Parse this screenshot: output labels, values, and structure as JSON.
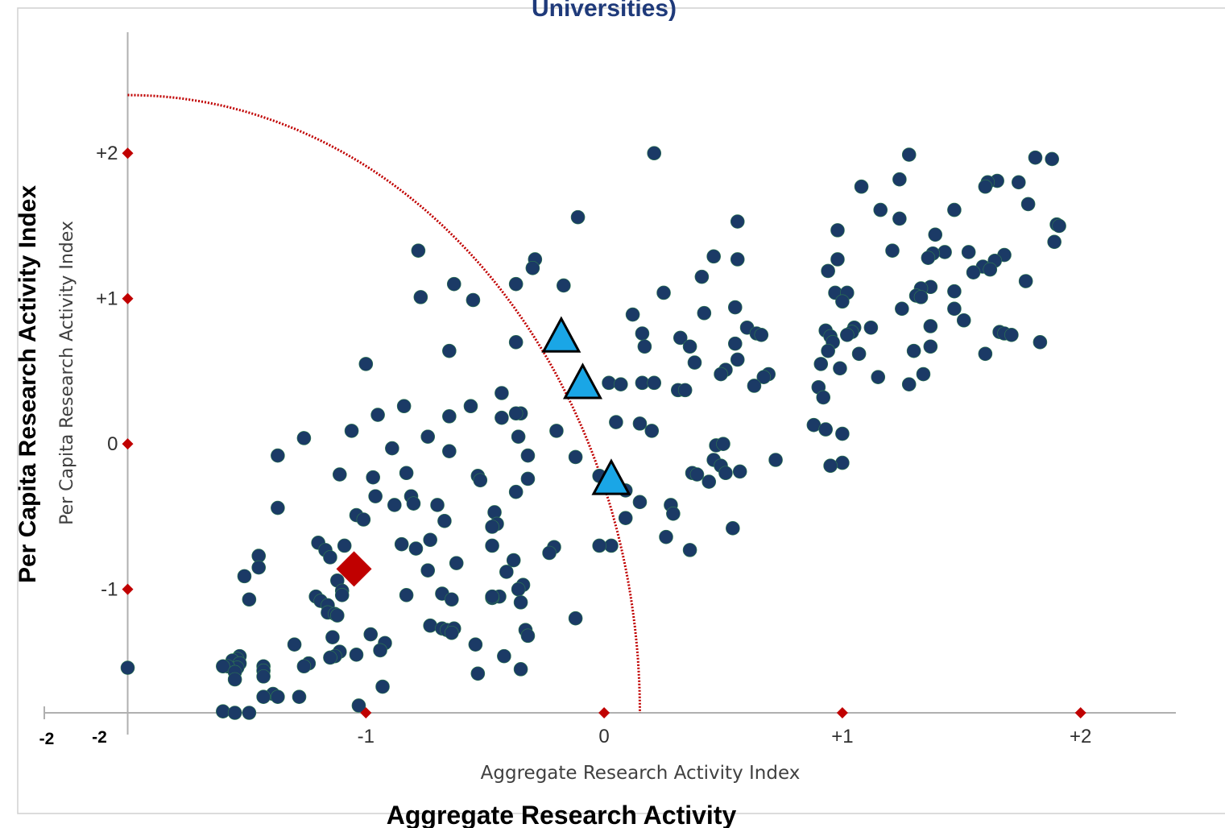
{
  "chart_data": {
    "type": "scatter",
    "title": "Universities)",
    "xlabel": "Aggregate Research Activity",
    "ylabel": "Per Capita Research Activity Index",
    "inner_xlabel": "Aggregate Research Activity Index",
    "inner_ylabel": "Per Capita Research Activity Index",
    "xlim": [
      -2.35,
      2.4
    ],
    "ylim": [
      -1.85,
      2.5
    ],
    "x_ticks": [
      {
        "value": -2,
        "label": "-2"
      },
      {
        "value": -1,
        "label": "-1"
      },
      {
        "value": 0,
        "label": "0"
      },
      {
        "value": 1,
        "label": "+1"
      },
      {
        "value": 2,
        "label": "+2"
      }
    ],
    "y_ticks": [
      {
        "value": -1,
        "label": "-1"
      },
      {
        "value": 0,
        "label": "0"
      },
      {
        "value": 1,
        "label": "+1"
      },
      {
        "value": 2,
        "label": "+2"
      }
    ],
    "outer_x_tick_label": "-2",
    "colors": {
      "points": "#1b3a66",
      "triangles": "#1aa6e6",
      "diamond": "#c00000",
      "curve": "#c00000",
      "axis": "#b0b0b0"
    },
    "curve": {
      "center_x": -2,
      "center_y": -1.85,
      "radius_x": 2.15,
      "radius_y": 4.25
    },
    "series": [
      {
        "marker": "circle",
        "points": [
          [
            0.21,
            2.0
          ],
          [
            1.28,
            1.99
          ],
          [
            1.81,
            1.97
          ],
          [
            1.88,
            1.96
          ],
          [
            1.24,
            1.82
          ],
          [
            1.65,
            1.81
          ],
          [
            1.61,
            1.8
          ],
          [
            1.74,
            1.8
          ],
          [
            1.6,
            1.77
          ],
          [
            1.08,
            1.77
          ],
          [
            1.78,
            1.65
          ],
          [
            1.16,
            1.61
          ],
          [
            1.47,
            1.61
          ],
          [
            -0.11,
            1.56
          ],
          [
            1.24,
            1.55
          ],
          [
            0.56,
            1.53
          ],
          [
            1.9,
            1.51
          ],
          [
            1.91,
            1.5
          ],
          [
            0.98,
            1.47
          ],
          [
            1.39,
            1.44
          ],
          [
            1.89,
            1.39
          ],
          [
            -0.78,
            1.33
          ],
          [
            1.21,
            1.33
          ],
          [
            1.43,
            1.32
          ],
          [
            1.38,
            1.31
          ],
          [
            1.53,
            1.32
          ],
          [
            1.68,
            1.3
          ],
          [
            0.46,
            1.29
          ],
          [
            1.36,
            1.28
          ],
          [
            0.56,
            1.27
          ],
          [
            0.98,
            1.27
          ],
          [
            -0.29,
            1.27
          ],
          [
            1.64,
            1.26
          ],
          [
            1.59,
            1.22
          ],
          [
            -0.3,
            1.21
          ],
          [
            0.94,
            1.19
          ],
          [
            1.62,
            1.2
          ],
          [
            1.55,
            1.18
          ],
          [
            0.41,
            1.15
          ],
          [
            1.77,
            1.12
          ],
          [
            -0.63,
            1.1
          ],
          [
            -0.37,
            1.1
          ],
          [
            -0.17,
            1.09
          ],
          [
            1.37,
            1.08
          ],
          [
            1.33,
            1.07
          ],
          [
            0.97,
            1.04
          ],
          [
            1.02,
            1.04
          ],
          [
            1.47,
            1.05
          ],
          [
            0.25,
            1.04
          ],
          [
            1.31,
            1.02
          ],
          [
            1.33,
            1.01
          ],
          [
            -0.77,
            1.01
          ],
          [
            -0.55,
            0.99
          ],
          [
            1.0,
            0.98
          ],
          [
            0.55,
            0.94
          ],
          [
            1.25,
            0.93
          ],
          [
            1.47,
            0.93
          ],
          [
            0.42,
            0.9
          ],
          [
            0.12,
            0.89
          ],
          [
            1.51,
            0.85
          ],
          [
            1.37,
            0.81
          ],
          [
            0.6,
            0.8
          ],
          [
            1.05,
            0.8
          ],
          [
            1.12,
            0.8
          ],
          [
            0.93,
            0.78
          ],
          [
            1.04,
            0.77
          ],
          [
            1.66,
            0.77
          ],
          [
            0.64,
            0.76
          ],
          [
            1.02,
            0.75
          ],
          [
            0.66,
            0.75
          ],
          [
            1.68,
            0.76
          ],
          [
            0.16,
            0.76
          ],
          [
            0.32,
            0.73
          ],
          [
            0.95,
            0.74
          ],
          [
            1.71,
            0.75
          ],
          [
            0.96,
            0.7
          ],
          [
            -0.37,
            0.7
          ],
          [
            0.55,
            0.69
          ],
          [
            1.83,
            0.7
          ],
          [
            0.36,
            0.67
          ],
          [
            0.17,
            0.67
          ],
          [
            1.37,
            0.67
          ],
          [
            1.3,
            0.64
          ],
          [
            -0.65,
            0.64
          ],
          [
            0.94,
            0.64
          ],
          [
            1.07,
            0.62
          ],
          [
            1.6,
            0.62
          ],
          [
            0.56,
            0.58
          ],
          [
            0.38,
            0.56
          ],
          [
            0.91,
            0.55
          ],
          [
            -1.0,
            0.55
          ],
          [
            0.51,
            0.51
          ],
          [
            0.99,
            0.52
          ],
          [
            0.49,
            0.48
          ],
          [
            0.69,
            0.48
          ],
          [
            0.67,
            0.46
          ],
          [
            1.34,
            0.48
          ],
          [
            1.15,
            0.46
          ],
          [
            0.02,
            0.42
          ],
          [
            0.07,
            0.41
          ],
          [
            0.16,
            0.42
          ],
          [
            0.21,
            0.42
          ],
          [
            1.28,
            0.41
          ],
          [
            0.63,
            0.4
          ],
          [
            0.9,
            0.39
          ],
          [
            0.31,
            0.37
          ],
          [
            0.34,
            0.37
          ],
          [
            -0.43,
            0.35
          ],
          [
            0.92,
            0.32
          ],
          [
            -0.84,
            0.26
          ],
          [
            -0.56,
            0.26
          ],
          [
            -0.35,
            0.21
          ],
          [
            -0.37,
            0.21
          ],
          [
            -0.95,
            0.2
          ],
          [
            -0.43,
            0.18
          ],
          [
            0.05,
            0.15
          ],
          [
            0.15,
            0.14
          ],
          [
            -0.2,
            0.09
          ],
          [
            -0.65,
            0.19
          ],
          [
            -1.06,
            0.09
          ],
          [
            0.88,
            0.13
          ],
          [
            0.93,
            0.1
          ],
          [
            0.2,
            0.09
          ],
          [
            -0.36,
            0.05
          ],
          [
            -0.74,
            0.05
          ],
          [
            -1.26,
            0.04
          ],
          [
            1.0,
            0.07
          ],
          [
            0.47,
            -0.01
          ],
          [
            0.5,
            0.0
          ],
          [
            -0.89,
            -0.03
          ],
          [
            -0.65,
            -0.05
          ],
          [
            -1.37,
            -0.08
          ],
          [
            -0.32,
            -0.08
          ],
          [
            -0.02,
            -0.22
          ],
          [
            -0.12,
            -0.09
          ],
          [
            0.72,
            -0.11
          ],
          [
            0.46,
            -0.11
          ],
          [
            0.49,
            -0.15
          ],
          [
            0.51,
            -0.2
          ],
          [
            0.57,
            -0.19
          ],
          [
            0.37,
            -0.2
          ],
          [
            0.39,
            -0.21
          ],
          [
            1.0,
            -0.13
          ],
          [
            0.95,
            -0.15
          ],
          [
            -0.83,
            -0.2
          ],
          [
            -0.97,
            -0.23
          ],
          [
            -0.53,
            -0.22
          ],
          [
            -1.11,
            -0.21
          ],
          [
            -0.52,
            -0.25
          ],
          [
            -0.32,
            -0.24
          ],
          [
            0.44,
            -0.26
          ],
          [
            -0.37,
            -0.33
          ],
          [
            -0.96,
            -0.36
          ],
          [
            -0.81,
            -0.36
          ],
          [
            0.09,
            -0.32
          ],
          [
            -0.8,
            -0.41
          ],
          [
            -0.88,
            -0.42
          ],
          [
            -0.7,
            -0.42
          ],
          [
            0.15,
            -0.4
          ],
          [
            0.28,
            -0.42
          ],
          [
            0.29,
            -0.48
          ],
          [
            -1.37,
            -0.44
          ],
          [
            -1.04,
            -0.49
          ],
          [
            -1.01,
            -0.52
          ],
          [
            -0.46,
            -0.47
          ],
          [
            -0.45,
            -0.55
          ],
          [
            -0.47,
            -0.57
          ],
          [
            -0.67,
            -0.53
          ],
          [
            0.09,
            -0.51
          ],
          [
            0.54,
            -0.58
          ],
          [
            -0.73,
            -0.66
          ],
          [
            0.26,
            -0.64
          ],
          [
            -0.47,
            -0.7
          ],
          [
            -0.85,
            -0.69
          ],
          [
            -1.2,
            -0.68
          ],
          [
            -1.17,
            -0.73
          ],
          [
            -1.09,
            -0.7
          ],
          [
            -0.79,
            -0.72
          ],
          [
            -0.21,
            -0.71
          ],
          [
            -0.23,
            -0.75
          ],
          [
            0.03,
            -0.7
          ],
          [
            -0.02,
            -0.7
          ],
          [
            0.36,
            -0.73
          ],
          [
            -1.45,
            -0.77
          ],
          [
            -1.15,
            -0.78
          ],
          [
            -1.45,
            -0.85
          ],
          [
            -0.38,
            -0.8
          ],
          [
            -0.62,
            -0.82
          ],
          [
            -1.06,
            -0.84
          ],
          [
            -0.74,
            -0.87
          ],
          [
            -0.41,
            -0.88
          ],
          [
            -1.51,
            -0.91
          ],
          [
            -1.12,
            -0.94
          ],
          [
            -0.34,
            -0.97
          ],
          [
            -0.36,
            -1.0
          ],
          [
            -1.1,
            -1.01
          ],
          [
            -0.83,
            -1.04
          ],
          [
            -0.68,
            -1.03
          ],
          [
            -0.44,
            -1.05
          ],
          [
            -0.47,
            -1.06
          ],
          [
            -1.21,
            -1.05
          ],
          [
            -1.1,
            -1.04
          ],
          [
            -0.64,
            -1.07
          ],
          [
            -1.49,
            -1.07
          ],
          [
            -1.19,
            -1.08
          ],
          [
            -1.16,
            -1.11
          ],
          [
            -0.35,
            -1.09
          ],
          [
            -0.47,
            -1.05
          ],
          [
            -1.16,
            -1.16
          ],
          [
            -1.13,
            -1.17
          ],
          [
            -1.12,
            -1.18
          ],
          [
            -0.12,
            -1.2
          ],
          [
            -0.73,
            -1.25
          ],
          [
            -0.68,
            -1.27
          ],
          [
            -0.66,
            -1.28
          ],
          [
            -0.63,
            -1.27
          ],
          [
            -0.64,
            -1.3
          ],
          [
            -0.33,
            -1.28
          ],
          [
            -0.32,
            -1.32
          ],
          [
            -0.98,
            -1.31
          ],
          [
            -1.14,
            -1.33
          ],
          [
            -0.92,
            -1.37
          ],
          [
            -1.3,
            -1.38
          ],
          [
            -0.54,
            -1.38
          ],
          [
            -1.11,
            -1.43
          ],
          [
            -0.94,
            -1.42
          ],
          [
            -1.13,
            -1.46
          ],
          [
            -1.15,
            -1.47
          ],
          [
            -1.04,
            -1.45
          ],
          [
            -0.42,
            -1.46
          ],
          [
            -1.53,
            -1.46
          ],
          [
            -1.54,
            -1.48
          ],
          [
            -1.56,
            -1.49
          ],
          [
            -1.53,
            -1.51
          ],
          [
            -1.24,
            -1.51
          ],
          [
            -1.26,
            -1.53
          ],
          [
            -1.54,
            -1.54
          ],
          [
            -1.58,
            -1.53
          ],
          [
            -1.6,
            -1.53
          ],
          [
            -1.43,
            -1.53
          ],
          [
            -2.0,
            -1.54
          ],
          [
            -1.43,
            -1.56
          ],
          [
            -1.55,
            -1.57
          ],
          [
            -0.35,
            -1.55
          ],
          [
            -0.53,
            -1.58
          ],
          [
            -1.55,
            -1.62
          ],
          [
            -1.43,
            -1.6
          ],
          [
            -0.93,
            -1.67
          ],
          [
            -1.39,
            -1.72
          ],
          [
            -1.43,
            -1.74
          ],
          [
            -1.37,
            -1.74
          ],
          [
            -1.28,
            -1.74
          ],
          [
            -1.03,
            -1.8
          ],
          [
            -1.6,
            -1.84
          ],
          [
            -1.55,
            -1.85
          ],
          [
            -1.49,
            -1.85
          ]
        ]
      },
      {
        "marker": "triangle",
        "points": [
          [
            -0.18,
            0.74
          ],
          [
            -0.09,
            0.42
          ],
          [
            0.03,
            -0.24
          ]
        ]
      },
      {
        "marker": "diamond",
        "points": [
          [
            -1.05,
            -0.86
          ]
        ]
      }
    ]
  }
}
